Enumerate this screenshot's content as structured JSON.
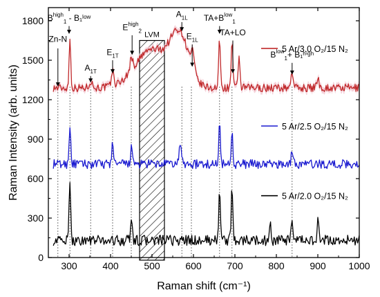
{
  "chart_data": {
    "type": "line",
    "title": "",
    "xlabel": "Raman shift (cm⁻¹)",
    "ylabel": "Raman Intensity (arb. units)",
    "xlim": [
      250,
      1000
    ],
    "ylim": [
      0,
      1900
    ],
    "xticks": [
      300,
      400,
      500,
      600,
      700,
      800,
      900,
      1000
    ],
    "yticks": [
      0,
      300,
      600,
      900,
      1200,
      1500,
      1800
    ],
    "grid": false,
    "legend_placement": "inline-right",
    "series": [
      {
        "name": "5 Ar/3.0 O₂/15 N₂",
        "color": "#c0282a",
        "band_color": "#f3c6cf",
        "base": 1290,
        "noise": 30,
        "peaks": [
          [
            302,
            370,
            2
          ],
          [
            352,
            50,
            4
          ],
          [
            405,
            110,
            3
          ],
          [
            450,
            110,
            3
          ],
          [
            500,
            290,
            40
          ],
          [
            567,
            370,
            22
          ],
          [
            598,
            130,
            4
          ],
          [
            663,
            380,
            2
          ],
          [
            693,
            360,
            2
          ],
          [
            710,
            260,
            2
          ],
          [
            838,
            120,
            3
          ],
          [
            900,
            70,
            3
          ]
        ]
      },
      {
        "name": "5 Ar/2.5 O₂/15 N₂",
        "color": "#1a1ad0",
        "band_color": "",
        "base": 710,
        "noise": 35,
        "peaks": [
          [
            302,
            300,
            2
          ],
          [
            405,
            180,
            2
          ],
          [
            450,
            130,
            2
          ],
          [
            568,
            140,
            3
          ],
          [
            663,
            360,
            2
          ],
          [
            693,
            260,
            2
          ],
          [
            838,
            120,
            2
          ]
        ]
      },
      {
        "name": "5 Ar/2.0 O₂/15 N₂",
        "color": "#000000",
        "band_color": "",
        "base": 130,
        "noise": 40,
        "peaks": [
          [
            302,
            410,
            2
          ],
          [
            450,
            180,
            2
          ],
          [
            663,
            410,
            2
          ],
          [
            693,
            390,
            2
          ],
          [
            785,
            120,
            2
          ],
          [
            838,
            130,
            2
          ],
          [
            900,
            150,
            2
          ]
        ]
      }
    ],
    "vlines": [
      273,
      302,
      352,
      405,
      450,
      572,
      595,
      663,
      693,
      838
    ],
    "lvm_band": [
      470,
      530
    ],
    "annotations": [
      {
        "id": "zn-n",
        "main": "Zn-N",
        "sup": "",
        "sub": "",
        "tail": "",
        "x": 273,
        "ytext": 1640,
        "arrow": [
          1590,
          1300
        ]
      },
      {
        "id": "b1-diff",
        "main": "B",
        "sup": "high",
        "sub": "1",
        "tail": " - B₁ˡᵒʷ",
        "x": 300,
        "ytext": 1800,
        "arrow": [
          1760,
          1700
        ]
      },
      {
        "id": "a1t",
        "main": "A",
        "sup": "",
        "sub": "1T",
        "tail": "",
        "x": 352,
        "ytext": 1420,
        "arrow": [
          1380,
          1330
        ]
      },
      {
        "id": "e1t",
        "main": "E",
        "sup": "",
        "sub": "1T",
        "tail": "",
        "x": 405,
        "ytext": 1540,
        "arrow": [
          1500,
          1400
        ]
      },
      {
        "id": "e2high",
        "main": "E",
        "sup": "high",
        "sub": "2",
        "tail": "",
        "x": 452,
        "ytext": 1730,
        "arrow": [
          1690,
          1540
        ]
      },
      {
        "id": "a1l",
        "main": "A",
        "sup": "",
        "sub": "1L",
        "tail": "",
        "x": 572,
        "ytext": 1830,
        "arrow": [
          1790,
          1720
        ]
      },
      {
        "id": "e1l",
        "main": "E",
        "sup": "",
        "sub": "1L",
        "tail": "",
        "x": 597,
        "ytext": 1660,
        "arrow": [
          1620,
          1450
        ]
      },
      {
        "id": "ta-b1",
        "main": "TA+B",
        "sup": "low",
        "sub": "1",
        "tail": "",
        "x": 663,
        "ytext": 1800,
        "arrow": [
          1760,
          1700
        ]
      },
      {
        "id": "ta-lo",
        "main": "TA+LO",
        "sup": "",
        "sub": "",
        "tail": "",
        "x": 695,
        "ytext": 1690,
        "arrow": [
          1650,
          1400
        ]
      },
      {
        "id": "b1-sum",
        "main": "B",
        "sup": "low",
        "sub": "1",
        "tail": "+ B₁ʰⁱᵍʰ",
        "x": 838,
        "ytext": 1520,
        "arrow": [
          1480,
          1390
        ]
      }
    ],
    "lvm_label": "LVM"
  }
}
